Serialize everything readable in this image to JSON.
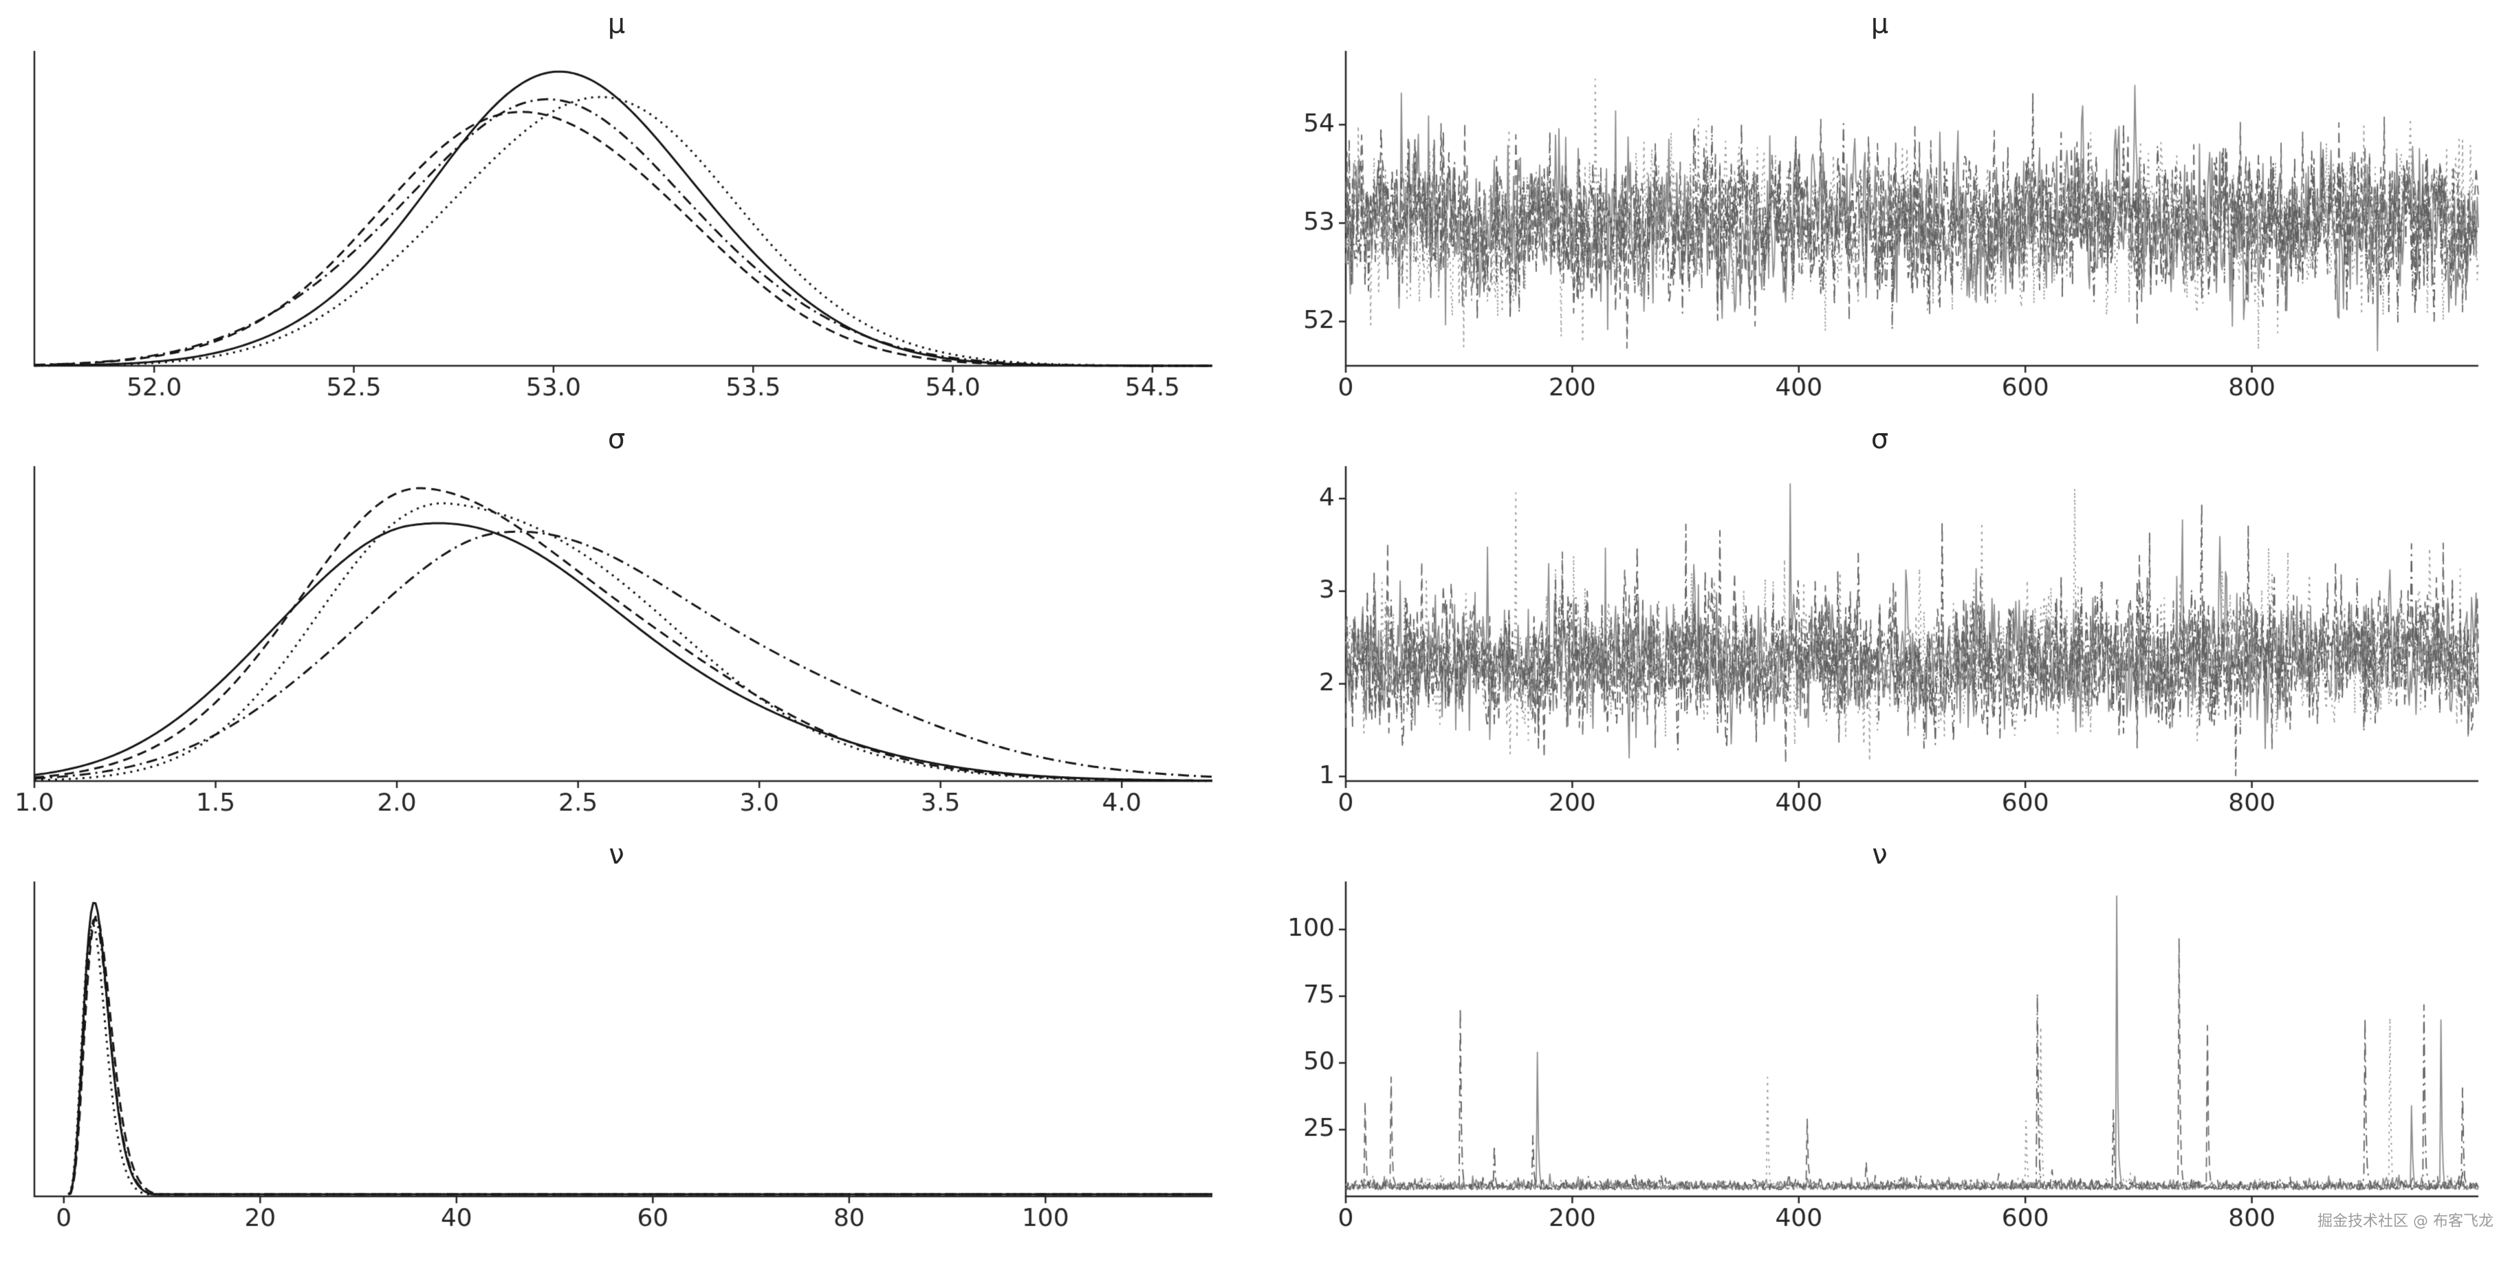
{
  "watermark": {
    "text": "掘金技术社区 @ 布客飞龙"
  },
  "chart_data": {
    "type": "line",
    "subtype": "kde-trace-grid",
    "kde_color": "#161616",
    "axis_color": "#262626",
    "chain_dashes": [
      "solid",
      "dashed",
      "dotted",
      "dashdot"
    ],
    "trace_colors": [
      "#8c8c8c",
      "#6b6b6b",
      "#9a9a9a",
      "#5e5e5e"
    ],
    "rows": [
      {
        "title": "μ",
        "kde": {
          "dist": "normal",
          "mean": 53.0,
          "sd": 0.37,
          "xlim": [
            51.7,
            54.65
          ],
          "x_tick_vals": [
            52.0,
            52.5,
            53.0,
            53.5,
            54.0,
            54.5
          ],
          "x_tick_labels": [
            "52.0",
            "52.5",
            "53.0",
            "53.5",
            "54.0",
            "54.5"
          ],
          "chains": [
            {
              "amp": 1.0,
              "shift": 0.03,
              "w": 0.95
            },
            {
              "amp": 0.9,
              "shift": -0.05,
              "w": 1.0
            },
            {
              "amp": 0.93,
              "shift": 0.09,
              "w": 0.98
            },
            {
              "amp": 0.9,
              "shift": -0.02,
              "w": 1.04
            }
          ]
        },
        "trace": {
          "kind": "normal",
          "mean": 53.0,
          "sd": 0.4,
          "xlim": [
            0,
            1000
          ],
          "x_tick_vals": [
            0,
            200,
            400,
            600,
            800
          ],
          "x_tick_labels": [
            "0",
            "200",
            "400",
            "600",
            "800"
          ],
          "ylim": [
            51.55,
            54.75
          ],
          "y_tick_vals": [
            52,
            53,
            54
          ],
          "y_tick_labels": [
            "52",
            "53",
            "54"
          ],
          "spike_hints": []
        }
      },
      {
        "title": "σ",
        "kde": {
          "dist": "skew",
          "mean": 2.08,
          "sd_left": 0.38,
          "sd_right": 0.62,
          "xlim": [
            1.0,
            4.25
          ],
          "x_tick_vals": [
            1.0,
            1.5,
            2.0,
            2.5,
            3.0,
            3.5,
            4.0
          ],
          "x_tick_labels": [
            "1.0",
            "1.5",
            "2.0",
            "2.5",
            "3.0",
            "3.5",
            "4.0"
          ],
          "chains": [
            {
              "amp": 0.9,
              "shift": -0.04,
              "w": 1.0
            },
            {
              "amp": 0.99,
              "shift": -0.01,
              "w": 0.95
            },
            {
              "amp": 1.0,
              "shift": 0.06,
              "w": 0.88
            },
            {
              "amp": 0.85,
              "shift": 0.2,
              "w": 1.12
            }
          ]
        },
        "trace": {
          "kind": "skewnoise",
          "mean": 2.0,
          "sd": 0.35,
          "xlim": [
            0,
            1000
          ],
          "x_tick_vals": [
            0,
            200,
            400,
            600,
            800
          ],
          "x_tick_labels": [
            "0",
            "200",
            "400",
            "600",
            "800"
          ],
          "ylim": [
            0.95,
            4.35
          ],
          "y_tick_vals": [
            1,
            2,
            3,
            4
          ],
          "y_tick_labels": [
            "1",
            "2",
            "3",
            "4"
          ],
          "spike_hints": []
        }
      },
      {
        "title": "ν",
        "kde": {
          "dist": "gamma",
          "peak": 3.1,
          "k": 6,
          "xlim": [
            -3,
            117
          ],
          "x_tick_vals": [
            0,
            20,
            40,
            60,
            80,
            100
          ],
          "x_tick_labels": [
            "0",
            "20",
            "40",
            "60",
            "80",
            "100"
          ],
          "chains": [
            {
              "amp": 1.0,
              "shift": 0.0,
              "w": 1.0
            },
            {
              "amp": 0.97,
              "shift": 0.12,
              "w": 1.03
            },
            {
              "amp": 0.99,
              "shift": -0.1,
              "w": 0.97
            },
            {
              "amp": 0.96,
              "shift": 0.06,
              "w": 1.0
            }
          ]
        },
        "trace": {
          "kind": "spiky",
          "mean": 4.0,
          "sd": 1.8,
          "xlim": [
            0,
            1000
          ],
          "x_tick_vals": [
            0,
            200,
            400,
            600,
            800
          ],
          "x_tick_labels": [
            "0",
            "200",
            "400",
            "600",
            "800"
          ],
          "ylim": [
            0,
            118
          ],
          "y_tick_vals": [
            25,
            50,
            75,
            100
          ],
          "y_tick_labels": [
            "25",
            "50",
            "75",
            "100"
          ],
          "spike_hints": [
            {
              "chain": 0,
              "x": 680,
              "h": 110
            },
            {
              "chain": 1,
              "x": 735,
              "h": 92
            },
            {
              "chain": 1,
              "x": 40,
              "h": 42
            },
            {
              "chain": 2,
              "x": 372,
              "h": 40
            },
            {
              "chain": 0,
              "x": 940,
              "h": 30
            },
            {
              "chain": 2,
              "x": 600,
              "h": 25
            }
          ]
        }
      }
    ]
  }
}
